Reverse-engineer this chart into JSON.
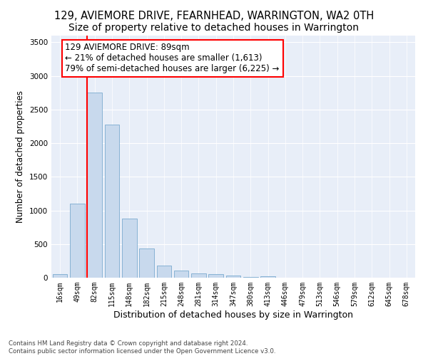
{
  "title": "129, AVIEMORE DRIVE, FEARNHEAD, WARRINGTON, WA2 0TH",
  "subtitle": "Size of property relative to detached houses in Warrington",
  "xlabel": "Distribution of detached houses by size in Warrington",
  "ylabel": "Number of detached properties",
  "categories": [
    "16sqm",
    "49sqm",
    "82sqm",
    "115sqm",
    "148sqm",
    "182sqm",
    "215sqm",
    "248sqm",
    "281sqm",
    "314sqm",
    "347sqm",
    "380sqm",
    "413sqm",
    "446sqm",
    "479sqm",
    "513sqm",
    "546sqm",
    "579sqm",
    "612sqm",
    "645sqm",
    "678sqm"
  ],
  "values": [
    50,
    1100,
    2750,
    2280,
    880,
    430,
    175,
    110,
    65,
    50,
    30,
    10,
    25,
    5,
    2,
    2,
    0,
    0,
    0,
    0,
    0
  ],
  "bar_color": "#c8d9ed",
  "bar_edgecolor": "#7aaacf",
  "annotation_box_text": "129 AVIEMORE DRIVE: 89sqm\n← 21% of detached houses are smaller (1,613)\n79% of semi-detached houses are larger (6,225) →",
  "red_line_bin_index": 2,
  "ylim_max": 3600,
  "background_color": "#e8eef8",
  "grid_color": "#ffffff",
  "footer_line1": "Contains HM Land Registry data © Crown copyright and database right 2024.",
  "footer_line2": "Contains public sector information licensed under the Open Government Licence v3.0.",
  "title_fontsize": 10.5,
  "ylabel_fontsize": 8.5,
  "xlabel_fontsize": 9,
  "tick_fontsize": 7,
  "annotation_fontsize": 8.5
}
